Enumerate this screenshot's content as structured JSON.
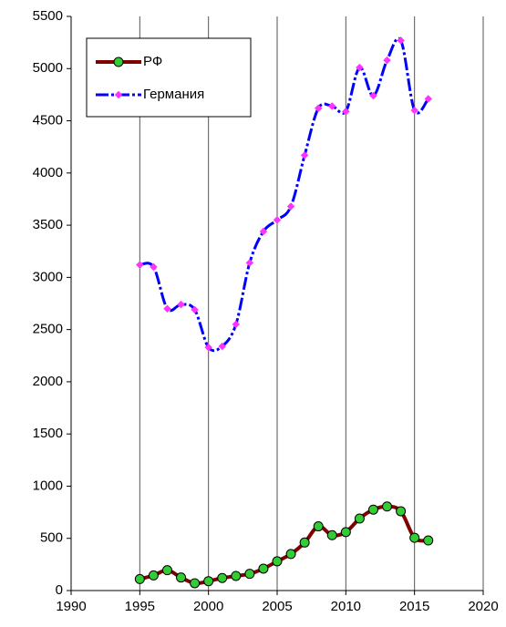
{
  "chart_data": {
    "type": "line",
    "x": [
      1995,
      1996,
      1997,
      1998,
      1999,
      2000,
      2001,
      2002,
      2003,
      2004,
      2005,
      2006,
      2007,
      2008,
      2009,
      2010,
      2011,
      2012,
      2013,
      2014,
      2015,
      2016
    ],
    "series": [
      {
        "name": "РФ",
        "color": "#800000",
        "marker_color": "#33cc33",
        "values": [
          110,
          145,
          195,
          125,
          70,
          90,
          120,
          140,
          160,
          210,
          280,
          350,
          460,
          615,
          530,
          560,
          690,
          775,
          805,
          760,
          505,
          480
        ]
      },
      {
        "name": "Германия",
        "color": "#0000ff",
        "marker_color": "#ff33ff",
        "values": [
          3120,
          3100,
          2700,
          2740,
          2690,
          2330,
          2340,
          2550,
          3140,
          3440,
          3550,
          3680,
          4170,
          4620,
          4640,
          4590,
          5010,
          4740,
          5080,
          5270,
          4600,
          4710
        ]
      }
    ],
    "xlim": [
      1990,
      2020
    ],
    "xticks": [
      1990,
      1995,
      2000,
      2005,
      2010,
      2015,
      2020
    ],
    "ylim": [
      0,
      5500
    ],
    "yticks": [
      0,
      500,
      1000,
      1500,
      2000,
      2500,
      3000,
      3500,
      4000,
      4500,
      5000,
      5500
    ],
    "grid": "x",
    "legend": "top-left"
  }
}
